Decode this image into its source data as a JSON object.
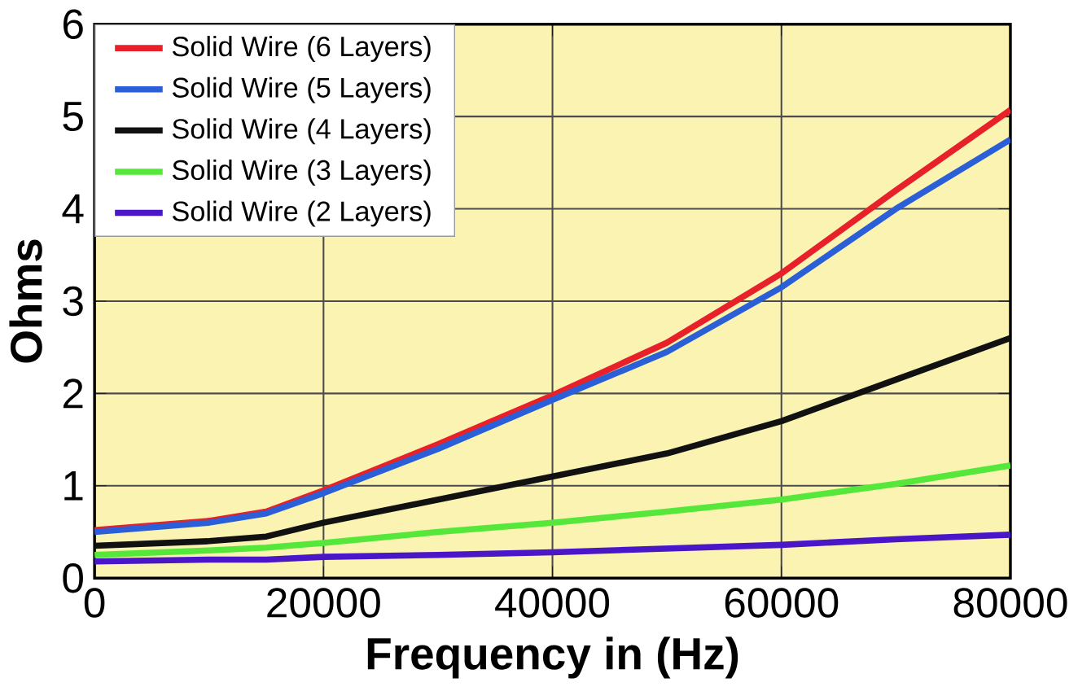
{
  "chart_data": {
    "type": "line",
    "xlabel": "Frequency in (Hz)",
    "ylabel": "Ohms",
    "x": [
      0,
      10000,
      15000,
      20000,
      30000,
      40000,
      50000,
      60000,
      70000,
      80000
    ],
    "series": [
      {
        "name": "Solid Wire (6 Layers)",
        "color": "#e8202a",
        "values": [
          0.52,
          0.62,
          0.72,
          0.95,
          1.45,
          1.98,
          2.55,
          3.3,
          4.2,
          5.07
        ]
      },
      {
        "name": "Solid Wire (5 Layers)",
        "color": "#2a5fd8",
        "values": [
          0.5,
          0.6,
          0.7,
          0.92,
          1.4,
          1.93,
          2.45,
          3.15,
          4.0,
          4.75
        ]
      },
      {
        "name": "Solid Wire (4 Layers)",
        "color": "#111111",
        "values": [
          0.35,
          0.4,
          0.45,
          0.6,
          0.85,
          1.1,
          1.35,
          1.7,
          2.15,
          2.6
        ]
      },
      {
        "name": "Solid Wire (3 Layers)",
        "color": "#55e83a",
        "values": [
          0.25,
          0.3,
          0.33,
          0.38,
          0.5,
          0.6,
          0.72,
          0.85,
          1.02,
          1.22
        ]
      },
      {
        "name": "Solid Wire (2 Layers)",
        "color": "#4a16c8",
        "values": [
          0.18,
          0.2,
          0.2,
          0.23,
          0.25,
          0.28,
          0.32,
          0.36,
          0.42,
          0.47
        ]
      }
    ],
    "xlim": [
      0,
      80000
    ],
    "ylim": [
      0,
      6
    ],
    "xticks": [
      0,
      20000,
      40000,
      60000,
      80000
    ],
    "yticks": [
      0,
      1,
      2,
      3,
      4,
      5,
      6
    ],
    "grid": true,
    "legend": "top left",
    "marker": "none",
    "line_style": "solid"
  }
}
